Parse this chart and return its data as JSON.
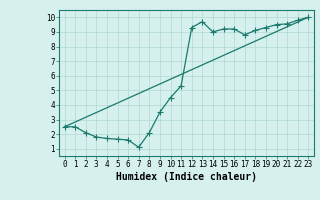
{
  "line1_x": [
    0,
    1,
    2,
    3,
    4,
    5,
    6,
    7,
    8,
    9,
    10,
    11,
    12,
    13,
    14,
    15,
    16,
    17,
    18,
    19,
    20,
    21,
    22,
    23
  ],
  "line1_y": [
    2.5,
    2.5,
    2.1,
    1.8,
    1.7,
    1.65,
    1.6,
    1.1,
    2.1,
    3.5,
    4.5,
    5.3,
    9.3,
    9.7,
    9.0,
    9.2,
    9.2,
    8.8,
    9.1,
    9.3,
    9.5,
    9.55,
    9.8,
    10.0
  ],
  "line2_x": [
    0,
    23
  ],
  "line2_y": [
    2.5,
    10.0
  ],
  "color": "#1a7a6e",
  "bg_color": "#d6f0ee",
  "grid_color": "#b0d8d4",
  "xlabel": "Humidex (Indice chaleur)",
  "xlim": [
    -0.5,
    23.5
  ],
  "ylim": [
    0.5,
    10.5
  ],
  "xticks": [
    0,
    1,
    2,
    3,
    4,
    5,
    6,
    7,
    8,
    9,
    10,
    11,
    12,
    13,
    14,
    15,
    16,
    17,
    18,
    19,
    20,
    21,
    22,
    23
  ],
  "yticks": [
    1,
    2,
    3,
    4,
    5,
    6,
    7,
    8,
    9,
    10
  ],
  "marker": "+",
  "markersize": 4.0,
  "linewidth": 0.9,
  "tick_fontsize": 5.5,
  "xlabel_fontsize": 7.0
}
